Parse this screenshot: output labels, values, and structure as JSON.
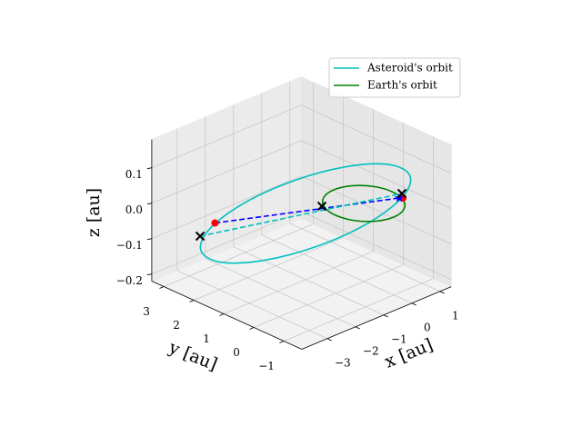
{
  "chart_data": {
    "type": "line3d",
    "xlabel": "x [au]",
    "ylabel": "y [au]",
    "zlabel": "z [au]",
    "xlim": [
      -3.9,
      1.4
    ],
    "ylim": [
      -1.6,
      3.4
    ],
    "zlim": [
      -0.22,
      0.18
    ],
    "xticks": [
      {
        "value": -3,
        "label": "−3"
      },
      {
        "value": -2,
        "label": "−2"
      },
      {
        "value": -1,
        "label": "−1"
      },
      0,
      1
    ],
    "yticks": [
      {
        "value": -1,
        "label": "−1"
      },
      0,
      1,
      2,
      3
    ],
    "zticks": [
      {
        "value": -0.2,
        "label": "−0.2"
      },
      {
        "value": -0.1,
        "label": "−0.1"
      },
      {
        "value": 0,
        "label": "0.0"
      },
      0.1
    ],
    "grid": true,
    "legend_loc": "upper right",
    "series": [
      {
        "name": "Asteroid's orbit",
        "color": "#00bfbf",
        "closed": true,
        "x": [
          0.523,
          0.808,
          0.484,
          -0.369,
          -1.519,
          -2.658,
          -3.483,
          -3.769,
          -3.444,
          -2.591,
          -1.44,
          -0.301
        ],
        "y": [
          -1.054,
          -0.12,
          0.994,
          1.987,
          2.597,
          2.657,
          2.152,
          1.22,
          0.104,
          -0.888,
          -1.498,
          -1.559
        ],
        "z": [
          0.1,
          0.087,
          0.05,
          0,
          -0.05,
          -0.087,
          -0.1,
          -0.087,
          -0.05,
          0,
          0.05,
          0.087
        ]
      },
      {
        "name": "Earth's orbit",
        "color": "#008000",
        "closed": true,
        "x": [
          1,
          0.866,
          0.5,
          0,
          -0.5,
          -0.866,
          -1,
          -0.866,
          -0.5,
          0,
          0.5,
          0.866
        ],
        "y": [
          0,
          0.5,
          0.866,
          1,
          0.866,
          0.5,
          0,
          -0.5,
          -0.866,
          -1,
          -0.866,
          -0.5
        ],
        "z": [
          0,
          0,
          0,
          0,
          0,
          0,
          0,
          0,
          0,
          0,
          0,
          0
        ]
      }
    ],
    "dashed_lines": [
      {
        "color": "#0000ff",
        "x": [
          -2.389,
          0.876
        ],
        "y": [
          2.715,
          -0.359
        ],
        "z": [
          -0.08,
          0
        ]
      },
      {
        "color": "#00bfbf",
        "x": [
          -2.909,
          1.111
        ],
        "y": [
          2.721,
          -0.229
        ],
        "z": [
          -0.1,
          0
        ]
      }
    ],
    "markers": [
      {
        "marker": "o",
        "color": "#ff0000",
        "x": [
          -2.389,
          0.943
        ],
        "y": [
          2.715,
          -0.417
        ],
        "z": [
          -0.08,
          0
        ]
      },
      {
        "marker": "*",
        "color": "#0000ff",
        "x": [
          0.876
        ],
        "y": [
          -0.359
        ],
        "z": [
          0
        ]
      },
      {
        "marker": "x",
        "color": "#000000",
        "x": [
          -2.909,
          -0.883,
          1.111
        ],
        "y": [
          2.721,
          0.565,
          -0.229
        ],
        "z": [
          -0.1,
          0,
          0
        ]
      }
    ]
  }
}
